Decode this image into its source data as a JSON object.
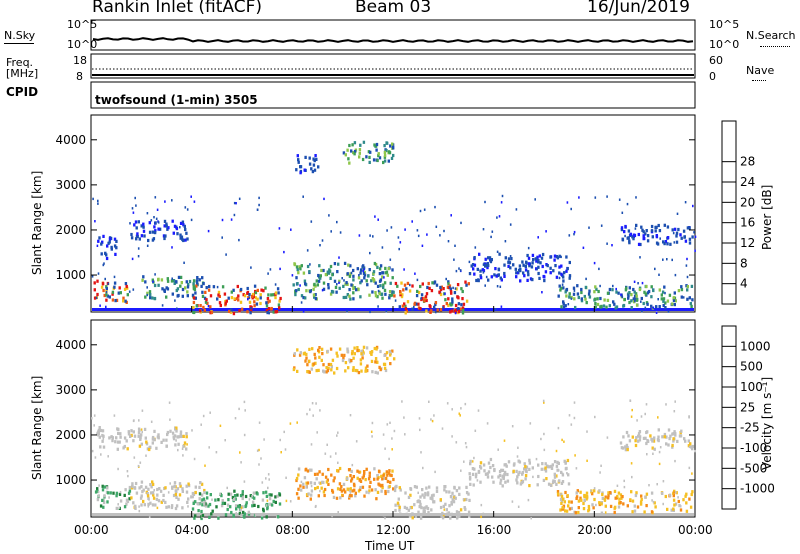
{
  "header": {
    "title": "Rankin Inlet (fitACF)",
    "beam": "Beam 03",
    "date": "16/Jun/2019"
  },
  "top_panels": {
    "nsky_label": "N.Sky",
    "nsearch_label": "N.Search",
    "freq_label": "Freq.",
    "freq_unit": "[MHz]",
    "nave_label": "Nave",
    "cpid_label": "CPID",
    "cpid_value": "twofsound (1-min) 3505",
    "nsky_ticks": [
      "10^5",
      "10^0"
    ],
    "nsearch_ticks": [
      "10^5",
      "10^0"
    ],
    "freq_ticks": [
      "18",
      "8"
    ],
    "nave_ticks": [
      "60",
      "0"
    ]
  },
  "chart_data": [
    {
      "type": "heatmap",
      "title": "",
      "ylabel": "Slant Range [km]",
      "xlabel": "Time UT",
      "xlim": [
        "00:00",
        "24:00"
      ],
      "ylim": [
        180,
        4550
      ],
      "x_ticks": [
        "00:00",
        "04:00",
        "08:00",
        "12:00",
        "16:00",
        "20:00",
        "00:00"
      ],
      "y_ticks": [
        1000,
        2000,
        3000,
        4000
      ],
      "colorbar": {
        "label": "Power [dB]",
        "ticks": [
          "4",
          "8",
          "12",
          "16",
          "20",
          "24",
          "28"
        ],
        "colors": [
          "#1b1bff",
          "#1c4fb0",
          "#2f8a8a",
          "#3d9e55",
          "#8fc64a",
          "#f4c21b",
          "#f79a0f",
          "#ee5a14",
          "#e41313"
        ]
      },
      "regions": [
        {
          "t0": 0.1,
          "t1": 1.5,
          "r0": 400,
          "r1": 900,
          "level": "high"
        },
        {
          "t0": 0.2,
          "t1": 1.0,
          "r0": 1400,
          "r1": 1900,
          "level": "low"
        },
        {
          "t0": 1.5,
          "t1": 3.8,
          "r0": 1800,
          "r1": 2250,
          "level": "low"
        },
        {
          "t0": 2.0,
          "t1": 4.5,
          "r0": 500,
          "r1": 1000,
          "level": "mid"
        },
        {
          "t0": 4.0,
          "t1": 7.5,
          "r0": 180,
          "r1": 800,
          "level": "high"
        },
        {
          "t0": 8.0,
          "t1": 12.0,
          "r0": 500,
          "r1": 1300,
          "level": "mid"
        },
        {
          "t0": 8.0,
          "t1": 9.0,
          "r0": 3300,
          "r1": 3700,
          "level": "low"
        },
        {
          "t0": 10.0,
          "t1": 12.0,
          "r0": 3500,
          "r1": 4000,
          "level": "mid"
        },
        {
          "t0": 12.0,
          "t1": 15.0,
          "r0": 180,
          "r1": 900,
          "level": "high"
        },
        {
          "t0": 15.0,
          "t1": 19.0,
          "r0": 900,
          "r1": 1500,
          "level": "low"
        },
        {
          "t0": 18.5,
          "t1": 24.0,
          "r0": 300,
          "r1": 800,
          "level": "mid"
        },
        {
          "t0": 21.0,
          "t1": 24.0,
          "r0": 1700,
          "r1": 2150,
          "level": "low"
        }
      ]
    },
    {
      "type": "heatmap",
      "title": "",
      "ylabel": "Slant Range [km]",
      "xlabel": "Time UT",
      "xlim": [
        "00:00",
        "24:00"
      ],
      "ylim": [
        180,
        4550
      ],
      "x_ticks": [
        "00:00",
        "04:00",
        "08:00",
        "12:00",
        "16:00",
        "20:00",
        "00:00"
      ],
      "y_ticks": [
        1000,
        2000,
        3000,
        4000
      ],
      "colorbar": {
        "label": "Velocity [m s⁻¹]",
        "ticks": [
          "1000",
          "500",
          "100",
          "25",
          "-25",
          "-100",
          "-500",
          "-1000"
        ],
        "colors": [
          "#1b1bc6",
          "#1f7f3a",
          "#3fa86a",
          "#6bd14a",
          "#c0c0c0",
          "#f5c023",
          "#f58a17",
          "#ee5a14",
          "#e41313"
        ]
      },
      "regions": [
        {
          "t0": 0.1,
          "t1": 1.5,
          "r0": 400,
          "r1": 900,
          "level": "pos"
        },
        {
          "t0": 0.2,
          "t1": 3.8,
          "r0": 1700,
          "r1": 2200,
          "level": "zero"
        },
        {
          "t0": 1.5,
          "t1": 4.5,
          "r0": 400,
          "r1": 1000,
          "level": "zero"
        },
        {
          "t0": 4.0,
          "t1": 7.5,
          "r0": 180,
          "r1": 800,
          "level": "pos"
        },
        {
          "t0": 8.0,
          "t1": 12.0,
          "r0": 600,
          "r1": 1300,
          "level": "neg"
        },
        {
          "t0": 8.0,
          "t1": 12.0,
          "r0": 3400,
          "r1": 4000,
          "level": "neg-low"
        },
        {
          "t0": 12.0,
          "t1": 15.0,
          "r0": 180,
          "r1": 900,
          "level": "zero"
        },
        {
          "t0": 15.0,
          "t1": 19.0,
          "r0": 900,
          "r1": 1500,
          "level": "zero"
        },
        {
          "t0": 18.5,
          "t1": 24.0,
          "r0": 300,
          "r1": 800,
          "level": "neg-low"
        },
        {
          "t0": 21.0,
          "t1": 24.0,
          "r0": 1700,
          "r1": 2150,
          "level": "zero"
        }
      ]
    }
  ]
}
